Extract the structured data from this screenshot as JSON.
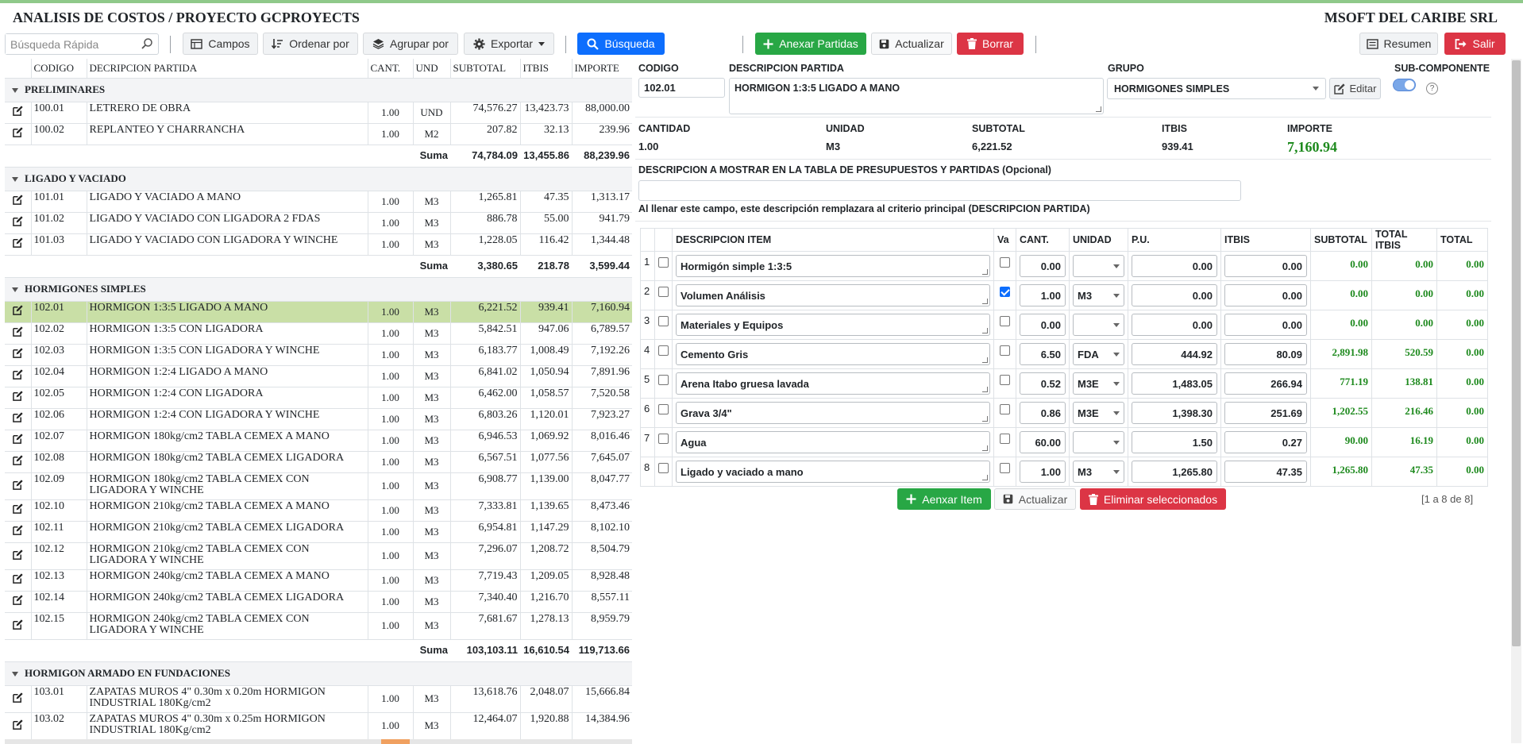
{
  "header": {
    "title": "ANALISIS DE COSTOS / PROYECTO GCPROYECTS",
    "company": "MSOFT DEL CARIBE SRL"
  },
  "toolbar": {
    "search_placeholder": "Búsqueda Rápida",
    "campos": "Campos",
    "ordenar": "Ordenar por",
    "agrupar": "Agrupar por",
    "exportar": "Exportar",
    "busqueda": "Búsqueda",
    "anexar_partidas": "Anexar Partidas",
    "actualizar": "Actualizar",
    "borrar": "Borrar",
    "resumen": "Resumen",
    "salir": "Salir"
  },
  "left_table": {
    "columns": [
      "CODIGO",
      "DECRIPCION PARTIDA",
      "CANT.",
      "UND",
      "SUBTOTAL",
      "ITBIS",
      "IMPORTE"
    ],
    "sum_label": "Suma",
    "groups": [
      {
        "name": "PRELIMINARES",
        "rows": [
          {
            "code": "100.01",
            "desc": "LETRERO DE OBRA",
            "cant": "1.00",
            "und": "UND",
            "subtotal": "74,576.27",
            "itbis": "13,423.73",
            "importe": "88,000.00"
          },
          {
            "code": "100.02",
            "desc": "REPLANTEO Y CHARRANCHA",
            "cant": "1.00",
            "und": "M2",
            "subtotal": "207.82",
            "itbis": "32.13",
            "importe": "239.96"
          }
        ],
        "sum": {
          "subtotal": "74,784.09",
          "itbis": "13,455.86",
          "importe": "88,239.96"
        }
      },
      {
        "name": "LIGADO Y VACIADO",
        "rows": [
          {
            "code": "101.01",
            "desc": "LIGADO Y VACIADO A MANO",
            "cant": "1.00",
            "und": "M3",
            "subtotal": "1,265.81",
            "itbis": "47.35",
            "importe": "1,313.17"
          },
          {
            "code": "101.02",
            "desc": "LIGADO Y VACIADO CON LIGADORA 2 FDAS",
            "cant": "1.00",
            "und": "M3",
            "subtotal": "886.78",
            "itbis": "55.00",
            "importe": "941.79"
          },
          {
            "code": "101.03",
            "desc": "LIGADO Y VACIADO CON LIGADORA Y WINCHE",
            "cant": "1.00",
            "und": "M3",
            "subtotal": "1,228.05",
            "itbis": "116.42",
            "importe": "1,344.48"
          }
        ],
        "sum": {
          "subtotal": "3,380.65",
          "itbis": "218.78",
          "importe": "3,599.44"
        }
      },
      {
        "name": "HORMIGONES SIMPLES",
        "rows": [
          {
            "code": "102.01",
            "desc": "HORMIGON 1:3:5 LIGADO A MANO",
            "cant": "1.00",
            "und": "M3",
            "subtotal": "6,221.52",
            "itbis": "939.41",
            "importe": "7,160.94",
            "selected": true
          },
          {
            "code": "102.02",
            "desc": "HORMIGON 1:3:5 CON LIGADORA",
            "cant": "1.00",
            "und": "M3",
            "subtotal": "5,842.51",
            "itbis": "947.06",
            "importe": "6,789.57"
          },
          {
            "code": "102.03",
            "desc": "HORMIGON 1:3:5 CON LIGADORA Y WINCHE",
            "cant": "1.00",
            "und": "M3",
            "subtotal": "6,183.77",
            "itbis": "1,008.49",
            "importe": "7,192.26"
          },
          {
            "code": "102.04",
            "desc": "HORMIGON 1:2:4 LIGADO A MANO",
            "cant": "1.00",
            "und": "M3",
            "subtotal": "6,841.02",
            "itbis": "1,050.94",
            "importe": "7,891.96"
          },
          {
            "code": "102.05",
            "desc": "HORMIGON 1:2:4 CON LIGADORA",
            "cant": "1.00",
            "und": "M3",
            "subtotal": "6,462.00",
            "itbis": "1,058.57",
            "importe": "7,520.58"
          },
          {
            "code": "102.06",
            "desc": "HORMIGON 1:2:4 CON LIGADORA Y WINCHE",
            "cant": "1.00",
            "und": "M3",
            "subtotal": "6,803.26",
            "itbis": "1,120.01",
            "importe": "7,923.27"
          },
          {
            "code": "102.07",
            "desc": "HORMIGON 180kg/cm2 TABLA CEMEX A MANO",
            "cant": "1.00",
            "und": "M3",
            "subtotal": "6,946.53",
            "itbis": "1,069.92",
            "importe": "8,016.46"
          },
          {
            "code": "102.08",
            "desc": "HORMIGON 180kg/cm2 TABLA CEMEX LIGADORA",
            "cant": "1.00",
            "und": "M3",
            "subtotal": "6,567.51",
            "itbis": "1,077.56",
            "importe": "7,645.07"
          },
          {
            "code": "102.09",
            "desc": "HORMIGON 180kg/cm2 TABLA CEMEX CON LIGADORA Y WINCHE",
            "cant": "1.00",
            "und": "M3",
            "subtotal": "6,908.77",
            "itbis": "1,139.00",
            "importe": "8,047.77"
          },
          {
            "code": "102.10",
            "desc": "HORMIGON 210kg/cm2 TABLA CEMEX A MANO",
            "cant": "1.00",
            "und": "M3",
            "subtotal": "7,333.81",
            "itbis": "1,139.65",
            "importe": "8,473.46"
          },
          {
            "code": "102.11",
            "desc": "HORMIGON 210kg/cm2 TABLA CEMEX LIGADORA",
            "cant": "1.00",
            "und": "M3",
            "subtotal": "6,954.81",
            "itbis": "1,147.29",
            "importe": "8,102.10"
          },
          {
            "code": "102.12",
            "desc": "HORMIGON 210kg/cm2 TABLA CEMEX CON LIGADORA Y WINCHE",
            "cant": "1.00",
            "und": "M3",
            "subtotal": "7,296.07",
            "itbis": "1,208.72",
            "importe": "8,504.79"
          },
          {
            "code": "102.13",
            "desc": "HORMIGON 240kg/cm2 TABLA CEMEX A MANO",
            "cant": "1.00",
            "und": "M3",
            "subtotal": "7,719.43",
            "itbis": "1,209.05",
            "importe": "8,928.48"
          },
          {
            "code": "102.14",
            "desc": "HORMIGON 240kg/cm2 TABLA CEMEX LIGADORA",
            "cant": "1.00",
            "und": "M3",
            "subtotal": "7,340.40",
            "itbis": "1,216.70",
            "importe": "8,557.11"
          },
          {
            "code": "102.15",
            "desc": "HORMIGON 240kg/cm2 TABLA CEMEX CON LIGADORA Y WINCHE",
            "cant": "1.00",
            "und": "M3",
            "subtotal": "7,681.67",
            "itbis": "1,278.13",
            "importe": "8,959.79"
          }
        ],
        "sum": {
          "subtotal": "103,103.11",
          "itbis": "16,610.54",
          "importe": "119,713.66"
        }
      },
      {
        "name": "HORMIGON ARMADO EN FUNDACIONES",
        "rows": [
          {
            "code": "103.01",
            "desc": "ZAPATAS MUROS 4\" 0.30m x 0.20m HORMIGON INDUSTRIAL 180Kg/cm2",
            "cant": "1.00",
            "und": "M3",
            "subtotal": "13,618.76",
            "itbis": "2,048.07",
            "importe": "15,666.84"
          },
          {
            "code": "103.02",
            "desc": "ZAPATAS MUROS 4\" 0.30m x 0.25m HORMIGON INDUSTRIAL 180Kg/cm2",
            "cant": "1.00",
            "und": "M3",
            "subtotal": "12,464.07",
            "itbis": "1,920.88",
            "importe": "14,384.96"
          }
        ]
      }
    ]
  },
  "detail": {
    "labels": {
      "codigo": "CODIGO",
      "descripcion": "DESCRIPCION PARTIDA",
      "grupo": "GRUPO",
      "subcomponente": "SUB-COMPONENTE",
      "cantidad": "CANTIDAD",
      "unidad": "UNIDAD",
      "subtotal": "SUBTOTAL",
      "itbis": "ITBIS",
      "importe": "IMPORTE",
      "desc_mostrar": "DESCRIPCION A MOSTRAR EN LA TABLA DE PRESUPUESTOS Y PARTIDAS (Opcional)",
      "desc_note": "Al llenar este campo, este descripción remplazara al criterio principal (DESCRIPCION PARTIDA)"
    },
    "codigo": "102.01",
    "descripcion": "HORMIGON 1:3:5 LIGADO A MANO",
    "grupo": "HORMIGONES SIMPLES",
    "editar": "Editar",
    "help": "?",
    "subcomponente_on": true,
    "cantidad": "1.00",
    "unidad": "M3",
    "subtotal": "6,221.52",
    "itbis": "939.41",
    "importe": "7,160.94",
    "desc_mostrar": ""
  },
  "items": {
    "columns": [
      "DESCRIPCION ITEM",
      "Va",
      "CANT.",
      "UNIDAD",
      "P.U.",
      "ITBIS",
      "SUBTOTAL",
      "TOTAL ITBIS",
      "TOTAL"
    ],
    "rows": [
      {
        "n": "1",
        "desc": "Hormigón simple 1:3:5",
        "va": false,
        "cant": "0.00",
        "unidad": "",
        "pu": "0.00",
        "itbis": "0.00",
        "subtotal": "0.00",
        "total_itbis": "0.00",
        "total": "0.00"
      },
      {
        "n": "2",
        "desc": "Volumen Análisis",
        "va": true,
        "cant": "1.00",
        "unidad": "M3",
        "pu": "0.00",
        "itbis": "0.00",
        "subtotal": "0.00",
        "total_itbis": "0.00",
        "total": "0.00"
      },
      {
        "n": "3",
        "desc": "Materiales y Equipos",
        "va": false,
        "cant": "0.00",
        "unidad": "",
        "pu": "0.00",
        "itbis": "0.00",
        "subtotal": "0.00",
        "total_itbis": "0.00",
        "total": "0.00"
      },
      {
        "n": "4",
        "desc": "Cemento Gris",
        "va": false,
        "cant": "6.50",
        "unidad": "FDA",
        "pu": "444.92",
        "itbis": "80.09",
        "subtotal": "2,891.98",
        "total_itbis": "520.59",
        "total": "0.00"
      },
      {
        "n": "5",
        "desc": "Arena Itabo gruesa lavada",
        "va": false,
        "cant": "0.52",
        "unidad": "M3E",
        "pu": "1,483.05",
        "itbis": "266.94",
        "subtotal": "771.19",
        "total_itbis": "138.81",
        "total": "0.00"
      },
      {
        "n": "6",
        "desc": "Grava 3/4\"",
        "va": false,
        "cant": "0.86",
        "unidad": "M3E",
        "pu": "1,398.30",
        "itbis": "251.69",
        "subtotal": "1,202.55",
        "total_itbis": "216.46",
        "total": "0.00"
      },
      {
        "n": "7",
        "desc": "Agua",
        "va": false,
        "cant": "60.00",
        "unidad": "",
        "pu": "1.50",
        "itbis": "0.27",
        "subtotal": "90.00",
        "total_itbis": "16.19",
        "total": "0.00"
      },
      {
        "n": "8",
        "desc": "Ligado y vaciado a mano",
        "va": false,
        "cant": "1.00",
        "unidad": "M3",
        "pu": "1,265.80",
        "itbis": "47.35",
        "subtotal": "1,265.80",
        "total_itbis": "47.35",
        "total": "0.00"
      }
    ],
    "anexar_item": "Aenxar Item",
    "actualizar": "Actualizar",
    "eliminar": "Eliminar seleccionados",
    "pager": "[1 a 8 de 8]"
  },
  "colors": {
    "primary": "#0d6efd",
    "success": "#28a745",
    "danger": "#dc3545",
    "selected_row": "#c9dfa6",
    "total_green": "#1e8a1e"
  }
}
